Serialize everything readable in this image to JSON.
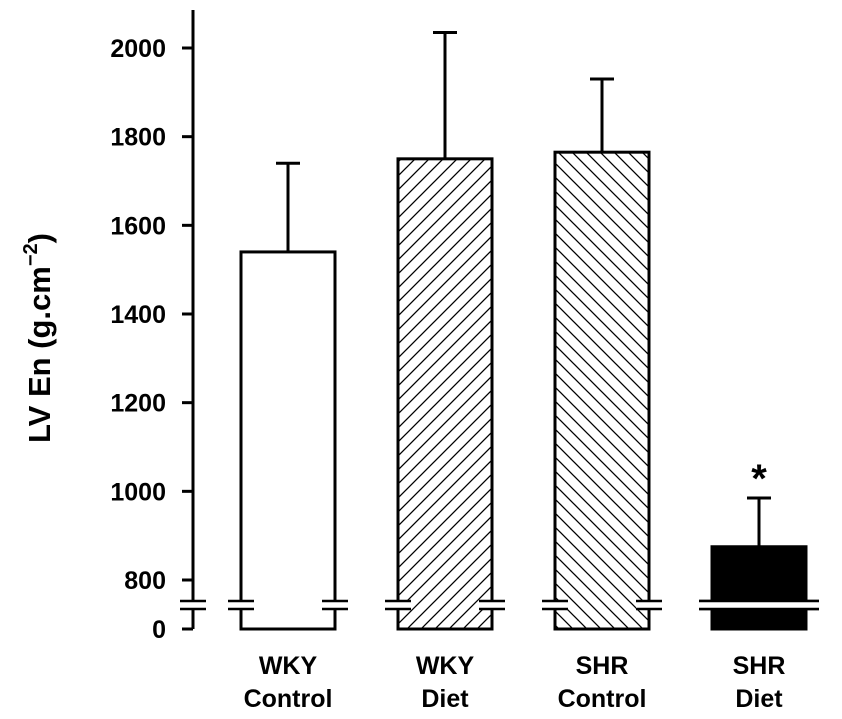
{
  "chart_data": {
    "type": "bar",
    "title": "",
    "xlabel": "",
    "ylabel": "LV En (g.cm",
    "ylabel_exponent": "−2",
    "ylabel_close": ")",
    "categories": [
      [
        "WKY",
        "Control"
      ],
      [
        "WKY",
        "Diet"
      ],
      [
        "SHR",
        "Control"
      ],
      [
        "SHR",
        "Diet"
      ]
    ],
    "values": [
      1540,
      1750,
      1765,
      875
    ],
    "errors": [
      200,
      285,
      165,
      110
    ],
    "fills": [
      "white",
      "hatch-forward",
      "hatch-backward",
      "black"
    ],
    "yticks": [
      0,
      800,
      1000,
      1200,
      1400,
      1600,
      1800,
      2000
    ],
    "ylim": [
      0,
      2000
    ],
    "axis_break": [
      0,
      800
    ],
    "grid": false,
    "annotations": [
      {
        "category_index": 3,
        "text": "*"
      }
    ]
  }
}
